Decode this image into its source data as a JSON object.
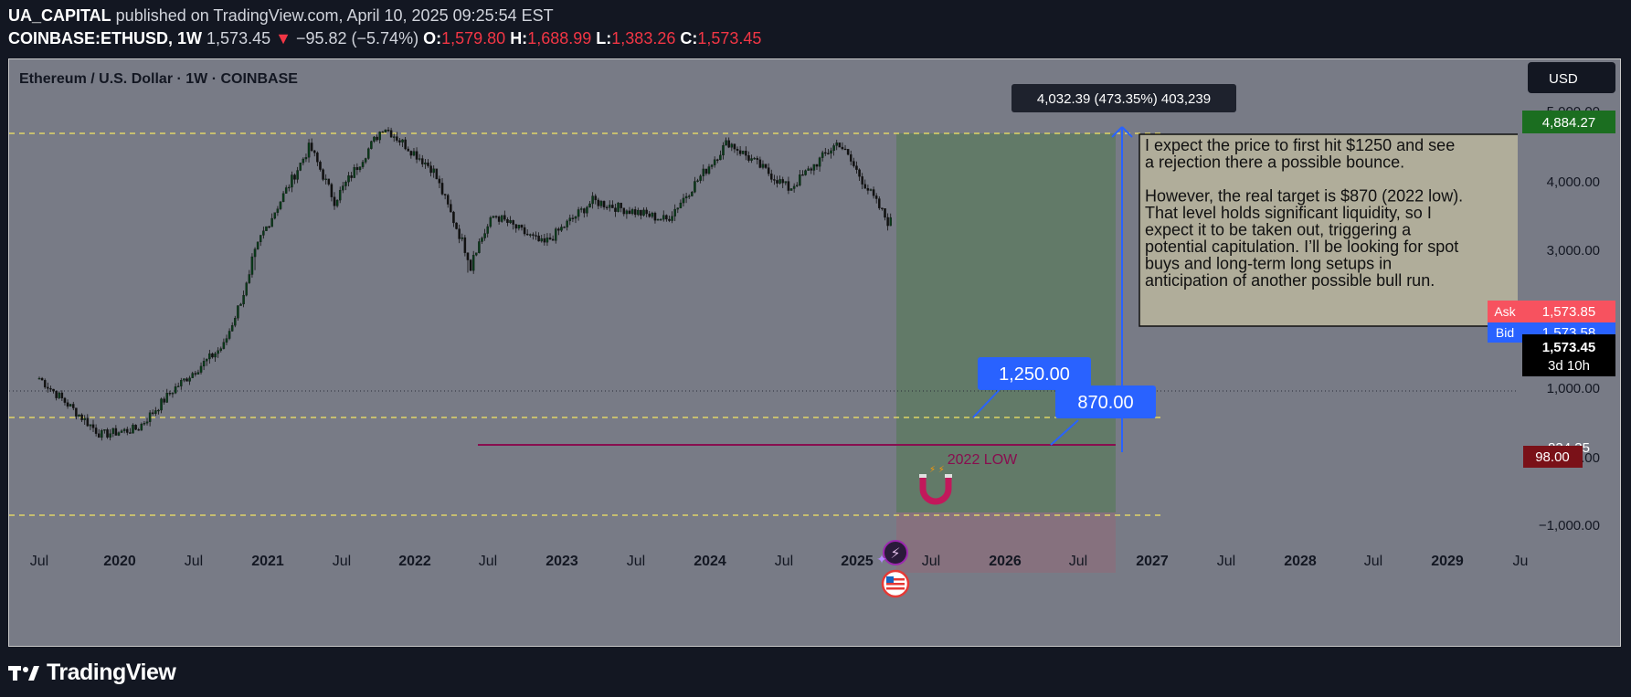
{
  "header": {
    "author": "UA_CAPITAL",
    "published": " published on TradingView.com, April 10, 2025 09:25:54 EST",
    "symbol": "COINBASE:ETHUSD, 1W",
    "last": "1,573.45",
    "change_arrow": "▼",
    "change": "−95.82 (−5.74%)",
    "o_label": "O:",
    "o": "1,579.80",
    "h_label": "H:",
    "h": "1,688.99",
    "l_label": "L:",
    "l": "1,383.26",
    "c_label": "C:",
    "c": "1,573.45"
  },
  "chart_title": "Ethereum / U.S. Dollar · 1W · COINBASE",
  "currency_button": "USD",
  "measure_label": "4,032.39 (473.35%) 403,239",
  "note_text": "I expect the price to first hit $1250 and see\na rejection there a possible bounce.\n\nHowever, the real target is $870 (2022 low).\nThat level holds significant liquidity, so I\nexpect it to be taken out, triggering a\npotential capitulation. I’ll be looking for spot\nbuys and long-term long setups in\nanticipation of another possible bull run.",
  "callout_1250": "1,250.00",
  "callout_870": "870.00",
  "low_label": "2022 LOW",
  "price_badges": {
    "top": "4,884.27",
    "ask_label": "Ask",
    "ask": "1,573.85",
    "bid_label": "Bid",
    "bid": "1,573.58",
    "last": "1,573.45",
    "countdown": "3d 10h",
    "level": "834.35",
    "bottom": "98.00"
  },
  "y_ticks": [
    "5,000.00",
    "4,000.00",
    "3,000.00",
    "1,000.00",
    "0.00",
    "−1,000.00"
  ],
  "x_ticks": [
    "Jul",
    "2020",
    "Jul",
    "2021",
    "Jul",
    "2022",
    "Jul",
    "2023",
    "Jul",
    "2024",
    "Jul",
    "2025",
    "Jul",
    "2026",
    "Jul",
    "2027",
    "Jul",
    "2028",
    "Jul",
    "2029",
    "Ju"
  ],
  "watermark": "TradingView",
  "colors": {
    "background": "#787b86",
    "up": "#0a3a1a",
    "down": "#111111",
    "dashed": "#f5e663",
    "accent_blue": "#2962ff",
    "low_line": "#880e4f",
    "badge_green": "#1b6e20",
    "badge_red": "#7a1118"
  },
  "chart_data": {
    "type": "candlestick",
    "title": "Ethereum / U.S. Dollar · 1W · COINBASE",
    "x_range": [
      "2019-05",
      "2029-09"
    ],
    "y_axis": "USD",
    "ohlc_approx": [
      {
        "date": "2019-06",
        "close": 300
      },
      {
        "date": "2019-12",
        "close": 130
      },
      {
        "date": "2020-03",
        "close": 140
      },
      {
        "date": "2020-06",
        "close": 230
      },
      {
        "date": "2020-10",
        "close": 390
      },
      {
        "date": "2021-01",
        "close": 1300
      },
      {
        "date": "2021-05",
        "close": 3800
      },
      {
        "date": "2021-07",
        "close": 2000
      },
      {
        "date": "2021-11",
        "close": 4800
      },
      {
        "date": "2022-03",
        "close": 2900
      },
      {
        "date": "2022-06",
        "close": 1000
      },
      {
        "date": "2022-08",
        "close": 1700
      },
      {
        "date": "2022-12",
        "close": 1200
      },
      {
        "date": "2023-04",
        "close": 2000
      },
      {
        "date": "2023-10",
        "close": 1600
      },
      {
        "date": "2024-03",
        "close": 4000
      },
      {
        "date": "2024-08",
        "close": 2300
      },
      {
        "date": "2024-12",
        "close": 4000
      },
      {
        "date": "2025-04",
        "close": 1573
      }
    ],
    "levels": [
      {
        "name": "top",
        "value": 4884.27
      },
      {
        "name": "target-1",
        "value": 1250
      },
      {
        "name": "2022 LOW",
        "value": 870
      },
      {
        "name": "bottom",
        "value": 98
      }
    ]
  }
}
